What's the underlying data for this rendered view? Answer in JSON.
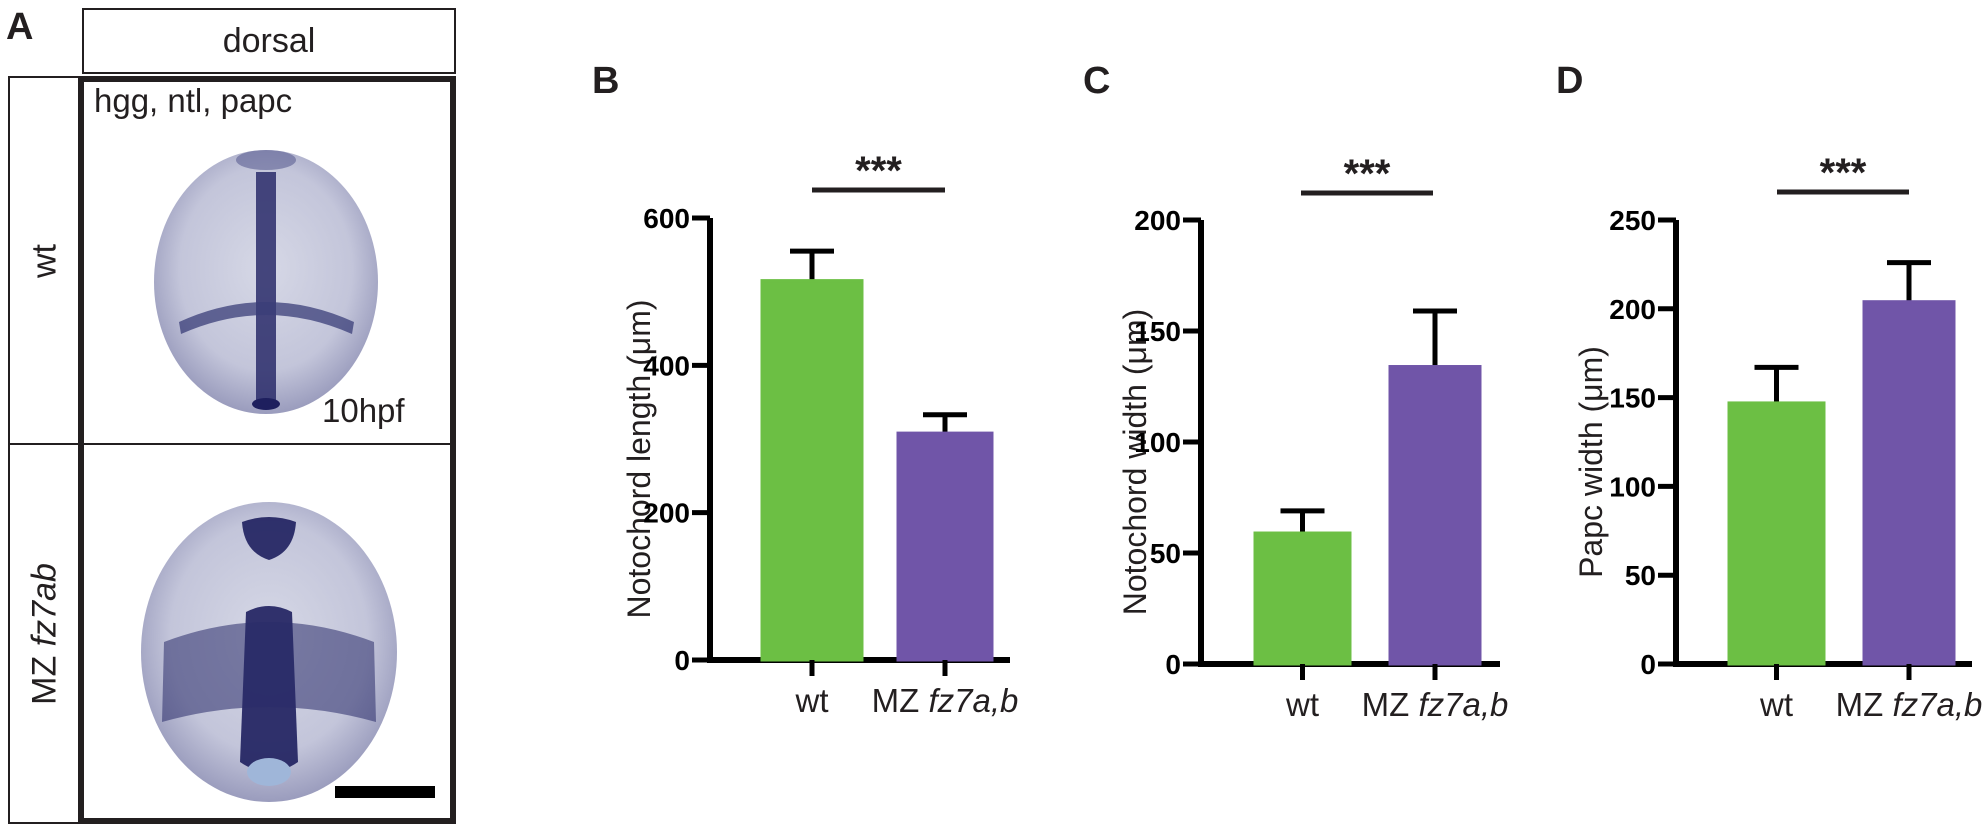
{
  "panel_a": {
    "letter": "A",
    "header": "dorsal",
    "row_labels": [
      {
        "text": "wt",
        "italic": ""
      },
      {
        "text": "MZ ",
        "italic": "fz7ab"
      }
    ],
    "probes": "hgg, ntl, papc",
    "stage": "10hpf"
  },
  "colors": {
    "wt": "#6cbf44",
    "mz": "#7055a8",
    "axis": "#000000",
    "embryo_stain": "#1e1f5e"
  },
  "chart_data": [
    {
      "panel": "B",
      "type": "bar",
      "categories": [
        {
          "text": "wt",
          "italic": ""
        },
        {
          "text": "MZ ",
          "italic": "fz7a,b"
        }
      ],
      "values": [
        515,
        308
      ],
      "errors": [
        40,
        25
      ],
      "ylabel": "Notochord length (μm)",
      "ylim": [
        0,
        600
      ],
      "yticks": [
        0,
        200,
        400,
        600
      ],
      "significance": "***"
    },
    {
      "panel": "C",
      "type": "bar",
      "categories": [
        {
          "text": "wt",
          "italic": ""
        },
        {
          "text": "MZ ",
          "italic": "fz7a,b"
        }
      ],
      "values": [
        59,
        134
      ],
      "errors": [
        10,
        25
      ],
      "ylabel": "Notochord width (μm)",
      "ylim": [
        0,
        200
      ],
      "yticks": [
        0,
        50,
        100,
        150,
        200
      ],
      "significance": "***"
    },
    {
      "panel": "D",
      "type": "bar",
      "categories": [
        {
          "text": "wt",
          "italic": ""
        },
        {
          "text": "MZ ",
          "italic": "fz7a,b"
        }
      ],
      "values": [
        147,
        204
      ],
      "errors": [
        20,
        22
      ],
      "ylabel": "Papc width (μm)",
      "ylim": [
        0,
        250
      ],
      "yticks": [
        0,
        50,
        100,
        150,
        200,
        250
      ],
      "significance": "***"
    }
  ]
}
